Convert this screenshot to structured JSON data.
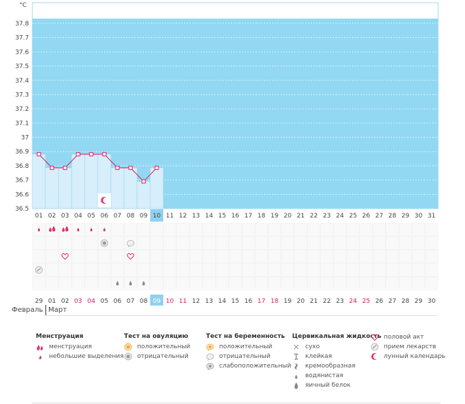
{
  "chart_data": {
    "type": "line",
    "ylabel": "°C",
    "ylim": [
      36.5,
      37.9
    ],
    "yticks": [
      "37.8",
      "37.7",
      "37.6",
      "37.5",
      "37.4",
      "37.3",
      "37.2",
      "37.1",
      "37",
      "36.9",
      "36.8",
      "36.7",
      "36.6",
      "36.5"
    ],
    "cycle_days": [
      "01",
      "02",
      "03",
      "04",
      "05",
      "06",
      "07",
      "08",
      "09",
      "10",
      "11",
      "12",
      "13",
      "14",
      "15",
      "16",
      "17",
      "18",
      "19",
      "20",
      "21",
      "22",
      "23",
      "24",
      "25",
      "26",
      "27",
      "28",
      "29",
      "30",
      "31"
    ],
    "current_cycle_day": "10",
    "temperatures": [
      36.9,
      36.8,
      36.8,
      36.9,
      36.9,
      36.9,
      36.8,
      36.8,
      36.7,
      36.8
    ],
    "dates": [
      "29",
      "01",
      "02",
      "03",
      "04",
      "05",
      "06",
      "07",
      "08",
      "09",
      "10",
      "11",
      "12",
      "13",
      "14",
      "15",
      "16",
      "17",
      "18",
      "19",
      "20",
      "21",
      "22",
      "23",
      "24",
      "25",
      "26",
      "27",
      "28",
      "29",
      "30"
    ],
    "date_colors": [
      "#444",
      "#444",
      "#444",
      "#d81b60",
      "#d81b60",
      "#444",
      "#444",
      "#444",
      "#444",
      "#fff",
      "#d81b60",
      "#d81b60",
      "#444",
      "#444",
      "#444",
      "#444",
      "#444",
      "#d81b60",
      "#d81b60",
      "#444",
      "#444",
      "#444",
      "#444",
      "#444",
      "#d81b60",
      "#d81b60",
      "#444",
      "#444",
      "#444",
      "#444",
      "#444"
    ],
    "current_date": "09",
    "months": {
      "prev": "Февраль",
      "current": "Март"
    },
    "moon_marker_day": 6,
    "marks": {
      "menstruation_heavy_days": [
        2,
        3
      ],
      "menstruation_light_days": [
        1,
        4,
        5,
        6
      ],
      "ovulation_negative_days": [
        6
      ],
      "pregnancy_negative_days": [
        8
      ],
      "intercourse_days": [
        3,
        8
      ],
      "medication_days": [
        1
      ],
      "egg_white_days": [
        7,
        8,
        9
      ]
    },
    "colors": {
      "fill": "#92d8f2",
      "bar": "#d6effb",
      "bar_edge": "#a6d3e8",
      "line": "#d81b60",
      "current_day": "#8fd1ef",
      "accent": "#e0306e"
    }
  },
  "legend": {
    "menstruation": {
      "title": "Менструация",
      "items": [
        "менструация",
        "небольшие выделения"
      ]
    },
    "ovulation_test": {
      "title": "Тест на овуляцию",
      "items": [
        "положительный",
        "отрицательный"
      ]
    },
    "pregnancy_test": {
      "title": "Тест на беременность",
      "items": [
        "положительный",
        "отрицательный",
        "слабоположительный"
      ]
    },
    "cervical_fluid": {
      "title": "Цервикальная жидкость",
      "items": [
        "сухо",
        "клейкая",
        "кремообразная",
        "водянистая",
        "яичный белок"
      ]
    },
    "other": {
      "items": [
        "половой акт",
        "прием лекарств",
        "лунный календарь"
      ]
    },
    "icons": [
      "drop-heavy-icon",
      "drop-light-icon",
      "ovulation-positive-icon",
      "ovulation-negative-icon",
      "pregnancy-positive-icon",
      "pregnancy-negative-icon",
      "pregnancy-weak-icon",
      "dry-icon",
      "sticky-icon",
      "creamy-icon",
      "watery-icon",
      "egg-white-icon",
      "heart-icon",
      "pill-icon",
      "moon-icon"
    ]
  }
}
